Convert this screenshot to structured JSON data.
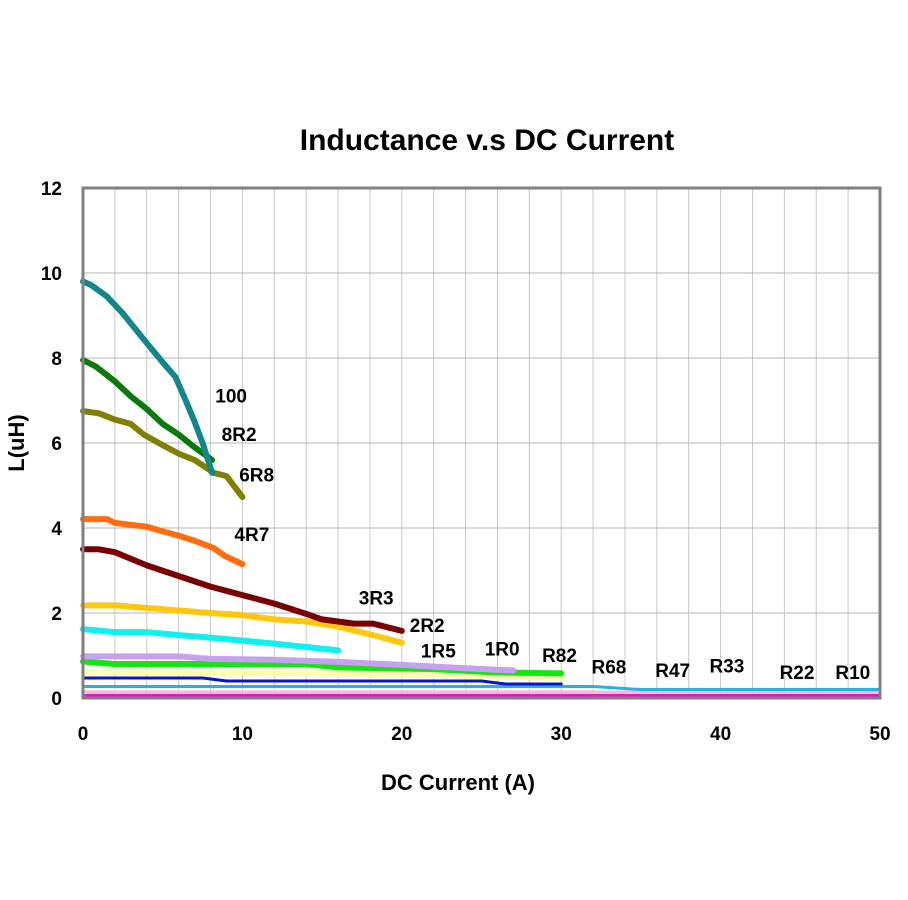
{
  "chart_data": {
    "type": "line",
    "title": "Inductance v.s DC Current",
    "xlabel": "DC Current (A)",
    "ylabel": "L(uH)",
    "xlim": [
      0,
      50
    ],
    "ylim": [
      0,
      12
    ],
    "xticks": [
      0,
      10,
      20,
      30,
      40,
      50
    ],
    "yticks": [
      0,
      2,
      4,
      6,
      8,
      10,
      12
    ],
    "x_minor_grid_step": 2,
    "y_grid_step": 2,
    "grid": true,
    "legend": "inline labels at line ends",
    "series": [
      {
        "name": "100",
        "color": "#12878B",
        "points": [
          [
            0,
            9.8
          ],
          [
            0.5,
            9.72
          ],
          [
            1.5,
            9.45
          ],
          [
            2.5,
            9.05
          ],
          [
            4,
            8.35
          ],
          [
            5,
            7.9
          ],
          [
            5.8,
            7.55
          ],
          [
            6.5,
            6.95
          ],
          [
            7,
            6.5
          ],
          [
            7.5,
            6.0
          ],
          [
            8.1,
            5.3
          ]
        ]
      },
      {
        "name": "8R2",
        "color": "#0B7A0B",
        "points": [
          [
            0,
            7.95
          ],
          [
            0.8,
            7.8
          ],
          [
            2,
            7.45
          ],
          [
            3,
            7.1
          ],
          [
            4,
            6.8
          ],
          [
            5,
            6.45
          ],
          [
            6,
            6.2
          ],
          [
            7,
            5.9
          ],
          [
            8.1,
            5.6
          ]
        ]
      },
      {
        "name": "6R8",
        "color": "#808000",
        "points": [
          [
            0,
            6.75
          ],
          [
            1,
            6.7
          ],
          [
            2,
            6.55
          ],
          [
            3,
            6.45
          ],
          [
            3.8,
            6.2
          ],
          [
            5,
            5.95
          ],
          [
            6,
            5.75
          ],
          [
            7,
            5.6
          ],
          [
            8.2,
            5.3
          ],
          [
            9,
            5.22
          ],
          [
            10,
            4.73
          ]
        ]
      },
      {
        "name": "4R7",
        "color": "#FF6E0E",
        "points": [
          [
            0,
            4.21
          ],
          [
            1.5,
            4.21
          ],
          [
            2,
            4.12
          ],
          [
            4,
            4.03
          ],
          [
            5,
            3.92
          ],
          [
            6,
            3.82
          ],
          [
            7,
            3.7
          ],
          [
            8.2,
            3.53
          ],
          [
            8.9,
            3.34
          ],
          [
            10,
            3.15
          ]
        ]
      },
      {
        "name": "3R3",
        "color": "#7A0000",
        "points": [
          [
            0,
            3.5
          ],
          [
            1,
            3.5
          ],
          [
            2,
            3.43
          ],
          [
            4,
            3.12
          ],
          [
            6,
            2.87
          ],
          [
            8,
            2.62
          ],
          [
            10,
            2.42
          ],
          [
            12,
            2.22
          ],
          [
            14,
            1.98
          ],
          [
            15,
            1.85
          ],
          [
            17,
            1.75
          ],
          [
            18.2,
            1.75
          ],
          [
            20,
            1.58
          ]
        ]
      },
      {
        "name": "2R2",
        "color": "#FFC80F",
        "points": [
          [
            0,
            2.18
          ],
          [
            2,
            2.18
          ],
          [
            4,
            2.12
          ],
          [
            6,
            2.06
          ],
          [
            8,
            2.0
          ],
          [
            10,
            1.95
          ],
          [
            12,
            1.85
          ],
          [
            14,
            1.8
          ],
          [
            16,
            1.68
          ],
          [
            18,
            1.5
          ],
          [
            20,
            1.3
          ]
        ]
      },
      {
        "name": "1R5",
        "color": "#0FF0F0",
        "points": [
          [
            0,
            1.62
          ],
          [
            2,
            1.55
          ],
          [
            4,
            1.55
          ],
          [
            6,
            1.48
          ],
          [
            8,
            1.42
          ],
          [
            10,
            1.35
          ],
          [
            12,
            1.28
          ],
          [
            14,
            1.2
          ],
          [
            16,
            1.12
          ]
        ]
      },
      {
        "name": "1R0",
        "color": "#C8A0F0",
        "points": [
          [
            0,
            0.98
          ],
          [
            6,
            0.98
          ],
          [
            8,
            0.92
          ],
          [
            12,
            0.9
          ],
          [
            16,
            0.85
          ],
          [
            20,
            0.78
          ],
          [
            24,
            0.7
          ],
          [
            27,
            0.65
          ]
        ]
      },
      {
        "name": "R82",
        "color": "#14E614",
        "points": [
          [
            0,
            0.86
          ],
          [
            2,
            0.8
          ],
          [
            6,
            0.8
          ],
          [
            14,
            0.8
          ],
          [
            16,
            0.72
          ],
          [
            22,
            0.68
          ],
          [
            26,
            0.6
          ],
          [
            30,
            0.58
          ]
        ]
      },
      {
        "name": "R68",
        "color": "#FFFFB4",
        "points": [
          [
            0,
            0.62
          ],
          [
            8,
            0.6
          ],
          [
            16,
            0.58
          ],
          [
            22,
            0.55
          ],
          [
            26,
            0.5
          ],
          [
            30,
            0.48
          ]
        ]
      },
      {
        "name": "R47",
        "color": "#0A14C8",
        "points": [
          [
            0,
            0.47
          ],
          [
            7.5,
            0.47
          ],
          [
            9,
            0.4
          ],
          [
            20,
            0.4
          ],
          [
            25,
            0.4
          ],
          [
            26.5,
            0.33
          ],
          [
            30,
            0.33
          ]
        ]
      },
      {
        "name": "R33",
        "color": "#1EB4E6",
        "points": [
          [
            0,
            0.27
          ],
          [
            32,
            0.27
          ],
          [
            35,
            0.2
          ],
          [
            50,
            0.2
          ]
        ]
      },
      {
        "name": "R22",
        "color": "#FFB4D2",
        "points": [
          [
            0,
            0.14
          ],
          [
            50,
            0.14
          ]
        ]
      },
      {
        "name": "R10",
        "color": "#E614C8",
        "points": [
          [
            0,
            0.06
          ],
          [
            50,
            0.06
          ]
        ]
      }
    ],
    "annotations": [
      {
        "text": "100",
        "x": 8.3,
        "y": 6.95
      },
      {
        "text": "8R2",
        "x": 8.7,
        "y": 6.05
      },
      {
        "text": "6R8",
        "x": 9.8,
        "y": 5.1
      },
      {
        "text": "4R7",
        "x": 9.5,
        "y": 3.7
      },
      {
        "text": "3R3",
        "x": 17.3,
        "y": 2.2
      },
      {
        "text": "2R2",
        "x": 20.5,
        "y": 1.55
      },
      {
        "text": "1R5",
        "x": 21.2,
        "y": 0.95
      },
      {
        "text": "1R0",
        "x": 25.2,
        "y": 1.0
      },
      {
        "text": "R82",
        "x": 28.8,
        "y": 0.85
      },
      {
        "text": "R68",
        "x": 31.9,
        "y": 0.58
      },
      {
        "text": "R47",
        "x": 35.9,
        "y": 0.5
      },
      {
        "text": "R33",
        "x": 39.3,
        "y": 0.6
      },
      {
        "text": "R22",
        "x": 43.7,
        "y": 0.45
      },
      {
        "text": "R10",
        "x": 47.2,
        "y": 0.45
      }
    ]
  }
}
